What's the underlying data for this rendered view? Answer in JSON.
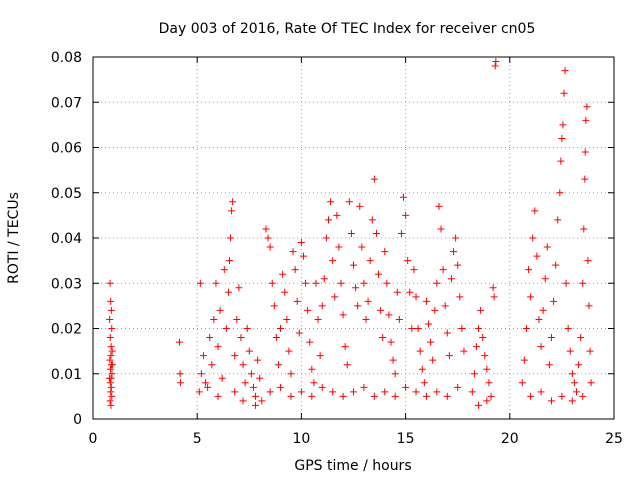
{
  "chart_data": {
    "type": "scatter",
    "title": "Day 003 of 2016, Rate Of TEC Index for receiver cn05",
    "xlabel": "GPS time / hours",
    "ylabel": "ROTI / TECUs",
    "xlim": [
      0,
      25
    ],
    "ylim": [
      0,
      0.08
    ],
    "xticks": [
      0,
      5,
      10,
      15,
      20,
      25
    ],
    "yticks": [
      0,
      0.01,
      0.02,
      0.03,
      0.04,
      0.05,
      0.06,
      0.07,
      0.08
    ],
    "ytick_labels": [
      "0",
      "0.01",
      "0.02",
      "0.03",
      "0.04",
      "0.05",
      "0.06",
      "0.07",
      "0.08"
    ],
    "grid": true,
    "marker": "+",
    "color": "#ff0000",
    "points": [
      [
        0.82,
        0.03
      ],
      [
        0.85,
        0.026
      ],
      [
        0.88,
        0.024
      ],
      [
        0.8,
        0.022
      ],
      [
        0.9,
        0.02
      ],
      [
        0.83,
        0.018
      ],
      [
        0.87,
        0.016
      ],
      [
        0.92,
        0.015
      ],
      [
        0.86,
        0.014
      ],
      [
        0.81,
        0.013
      ],
      [
        0.89,
        0.012
      ],
      [
        0.84,
        0.011
      ],
      [
        0.91,
        0.01
      ],
      [
        0.87,
        0.009
      ],
      [
        0.83,
        0.008
      ],
      [
        0.88,
        0.007
      ],
      [
        0.85,
        0.006
      ],
      [
        0.9,
        0.005
      ],
      [
        0.82,
        0.004
      ],
      [
        0.86,
        0.003
      ],
      [
        0.93,
        0.012
      ],
      [
        0.79,
        0.009
      ],
      [
        4.15,
        0.017
      ],
      [
        4.18,
        0.01
      ],
      [
        4.2,
        0.008
      ],
      [
        5.1,
        0.006
      ],
      [
        5.2,
        0.01
      ],
      [
        5.3,
        0.014
      ],
      [
        5.15,
        0.03
      ],
      [
        5.4,
        0.008
      ],
      [
        5.6,
        0.018
      ],
      [
        5.8,
        0.022
      ],
      [
        5.9,
        0.03
      ],
      [
        5.7,
        0.012
      ],
      [
        6.0,
        0.016
      ],
      [
        6.1,
        0.024
      ],
      [
        6.2,
        0.009
      ],
      [
        6.3,
        0.033
      ],
      [
        6.4,
        0.02
      ],
      [
        6.5,
        0.028
      ],
      [
        6.55,
        0.035
      ],
      [
        6.6,
        0.04
      ],
      [
        6.65,
        0.046
      ],
      [
        6.7,
        0.048
      ],
      [
        6.8,
        0.014
      ],
      [
        6.9,
        0.022
      ],
      [
        7.0,
        0.029
      ],
      [
        7.1,
        0.018
      ],
      [
        7.2,
        0.012
      ],
      [
        7.3,
        0.008
      ],
      [
        7.4,
        0.02
      ],
      [
        7.5,
        0.015
      ],
      [
        7.6,
        0.01
      ],
      [
        7.7,
        0.007
      ],
      [
        7.8,
        0.005
      ],
      [
        7.9,
        0.013
      ],
      [
        8.0,
        0.009
      ],
      [
        8.1,
        0.004
      ],
      [
        5.5,
        0.007
      ],
      [
        6.0,
        0.005
      ],
      [
        6.8,
        0.006
      ],
      [
        7.2,
        0.004
      ],
      [
        7.8,
        0.003
      ],
      [
        8.3,
        0.042
      ],
      [
        8.4,
        0.04
      ],
      [
        8.5,
        0.038
      ],
      [
        8.6,
        0.03
      ],
      [
        8.7,
        0.025
      ],
      [
        8.8,
        0.018
      ],
      [
        8.9,
        0.012
      ],
      [
        9.0,
        0.02
      ],
      [
        9.1,
        0.032
      ],
      [
        9.2,
        0.028
      ],
      [
        9.3,
        0.022
      ],
      [
        9.4,
        0.015
      ],
      [
        9.5,
        0.01
      ],
      [
        9.6,
        0.037
      ],
      [
        9.7,
        0.033
      ],
      [
        9.8,
        0.026
      ],
      [
        9.9,
        0.019
      ],
      [
        10.0,
        0.039
      ],
      [
        10.1,
        0.036
      ],
      [
        10.2,
        0.03
      ],
      [
        10.3,
        0.024
      ],
      [
        10.4,
        0.017
      ],
      [
        10.5,
        0.011
      ],
      [
        10.6,
        0.008
      ],
      [
        10.7,
        0.03
      ],
      [
        10.8,
        0.022
      ],
      [
        10.9,
        0.014
      ],
      [
        11.0,
        0.025
      ],
      [
        11.1,
        0.031
      ],
      [
        11.2,
        0.04
      ],
      [
        11.3,
        0.044
      ],
      [
        11.4,
        0.048
      ],
      [
        11.5,
        0.035
      ],
      [
        11.6,
        0.027
      ],
      [
        11.7,
        0.045
      ],
      [
        11.8,
        0.038
      ],
      [
        11.9,
        0.03
      ],
      [
        12.0,
        0.023
      ],
      [
        12.1,
        0.016
      ],
      [
        12.2,
        0.012
      ],
      [
        12.3,
        0.048
      ],
      [
        12.4,
        0.041
      ],
      [
        12.5,
        0.034
      ],
      [
        12.6,
        0.029
      ],
      [
        12.7,
        0.025
      ],
      [
        12.8,
        0.047
      ],
      [
        12.9,
        0.038
      ],
      [
        13.0,
        0.03
      ],
      [
        13.1,
        0.022
      ],
      [
        13.2,
        0.026
      ],
      [
        13.3,
        0.035
      ],
      [
        13.4,
        0.044
      ],
      [
        13.5,
        0.053
      ],
      [
        13.6,
        0.041
      ],
      [
        13.7,
        0.032
      ],
      [
        13.8,
        0.024
      ],
      [
        13.9,
        0.018
      ],
      [
        14.0,
        0.037
      ],
      [
        14.1,
        0.03
      ],
      [
        14.2,
        0.023
      ],
      [
        14.3,
        0.017
      ],
      [
        14.4,
        0.013
      ],
      [
        14.5,
        0.01
      ],
      [
        14.6,
        0.028
      ],
      [
        14.7,
        0.022
      ],
      [
        14.8,
        0.041
      ],
      [
        14.9,
        0.049
      ],
      [
        15.0,
        0.045
      ],
      [
        15.1,
        0.035
      ],
      [
        15.2,
        0.028
      ],
      [
        15.3,
        0.02
      ],
      [
        15.4,
        0.033
      ],
      [
        15.5,
        0.027
      ],
      [
        15.6,
        0.02
      ],
      [
        15.7,
        0.015
      ],
      [
        15.8,
        0.011
      ],
      [
        15.9,
        0.008
      ],
      [
        16.0,
        0.026
      ],
      [
        16.1,
        0.021
      ],
      [
        16.2,
        0.017
      ],
      [
        16.3,
        0.013
      ],
      [
        16.4,
        0.024
      ],
      [
        16.5,
        0.03
      ],
      [
        16.6,
        0.047
      ],
      [
        16.7,
        0.042
      ],
      [
        16.8,
        0.033
      ],
      [
        16.9,
        0.025
      ],
      [
        17.0,
        0.019
      ],
      [
        17.1,
        0.014
      ],
      [
        17.2,
        0.031
      ],
      [
        17.3,
        0.037
      ],
      [
        17.4,
        0.04
      ],
      [
        17.5,
        0.034
      ],
      [
        17.6,
        0.027
      ],
      [
        17.7,
        0.02
      ],
      [
        17.8,
        0.015
      ],
      [
        8.5,
        0.006
      ],
      [
        9.0,
        0.007
      ],
      [
        9.5,
        0.005
      ],
      [
        10.0,
        0.006
      ],
      [
        10.5,
        0.005
      ],
      [
        11.0,
        0.007
      ],
      [
        11.5,
        0.006
      ],
      [
        12.0,
        0.005
      ],
      [
        12.5,
        0.006
      ],
      [
        13.0,
        0.007
      ],
      [
        13.5,
        0.005
      ],
      [
        14.0,
        0.006
      ],
      [
        14.5,
        0.005
      ],
      [
        15.0,
        0.007
      ],
      [
        15.5,
        0.006
      ],
      [
        16.0,
        0.005
      ],
      [
        16.5,
        0.006
      ],
      [
        17.0,
        0.005
      ],
      [
        17.5,
        0.007
      ],
      [
        18.2,
        0.006
      ],
      [
        18.3,
        0.01
      ],
      [
        18.4,
        0.016
      ],
      [
        18.5,
        0.02
      ],
      [
        18.6,
        0.024
      ],
      [
        18.7,
        0.018
      ],
      [
        18.8,
        0.014
      ],
      [
        18.9,
        0.011
      ],
      [
        19.0,
        0.008
      ],
      [
        19.1,
        0.005
      ],
      [
        19.2,
        0.029
      ],
      [
        19.25,
        0.027
      ],
      [
        19.3,
        0.078
      ],
      [
        19.33,
        0.079
      ],
      [
        18.9,
        0.004
      ],
      [
        18.5,
        0.003
      ],
      [
        20.6,
        0.008
      ],
      [
        20.7,
        0.013
      ],
      [
        20.8,
        0.02
      ],
      [
        20.9,
        0.033
      ],
      [
        21.0,
        0.027
      ],
      [
        21.1,
        0.04
      ],
      [
        21.2,
        0.046
      ],
      [
        21.3,
        0.036
      ],
      [
        21.4,
        0.022
      ],
      [
        21.5,
        0.016
      ],
      [
        21.6,
        0.024
      ],
      [
        21.7,
        0.031
      ],
      [
        21.8,
        0.038
      ],
      [
        21.9,
        0.012
      ],
      [
        22.0,
        0.018
      ],
      [
        22.1,
        0.026
      ],
      [
        22.2,
        0.034
      ],
      [
        22.3,
        0.044
      ],
      [
        22.4,
        0.05
      ],
      [
        22.45,
        0.057
      ],
      [
        22.5,
        0.062
      ],
      [
        22.55,
        0.065
      ],
      [
        22.6,
        0.072
      ],
      [
        22.65,
        0.077
      ],
      [
        22.7,
        0.03
      ],
      [
        22.8,
        0.02
      ],
      [
        22.9,
        0.015
      ],
      [
        23.0,
        0.01
      ],
      [
        23.1,
        0.008
      ],
      [
        23.2,
        0.006
      ],
      [
        23.3,
        0.012
      ],
      [
        23.4,
        0.018
      ],
      [
        23.5,
        0.03
      ],
      [
        23.55,
        0.042
      ],
      [
        23.6,
        0.053
      ],
      [
        23.62,
        0.059
      ],
      [
        23.65,
        0.066
      ],
      [
        23.7,
        0.069
      ],
      [
        23.75,
        0.035
      ],
      [
        23.8,
        0.025
      ],
      [
        23.85,
        0.015
      ],
      [
        23.9,
        0.008
      ],
      [
        21.0,
        0.005
      ],
      [
        21.5,
        0.006
      ],
      [
        22.0,
        0.004
      ],
      [
        22.5,
        0.005
      ],
      [
        23.0,
        0.004
      ],
      [
        23.5,
        0.005
      ]
    ]
  }
}
